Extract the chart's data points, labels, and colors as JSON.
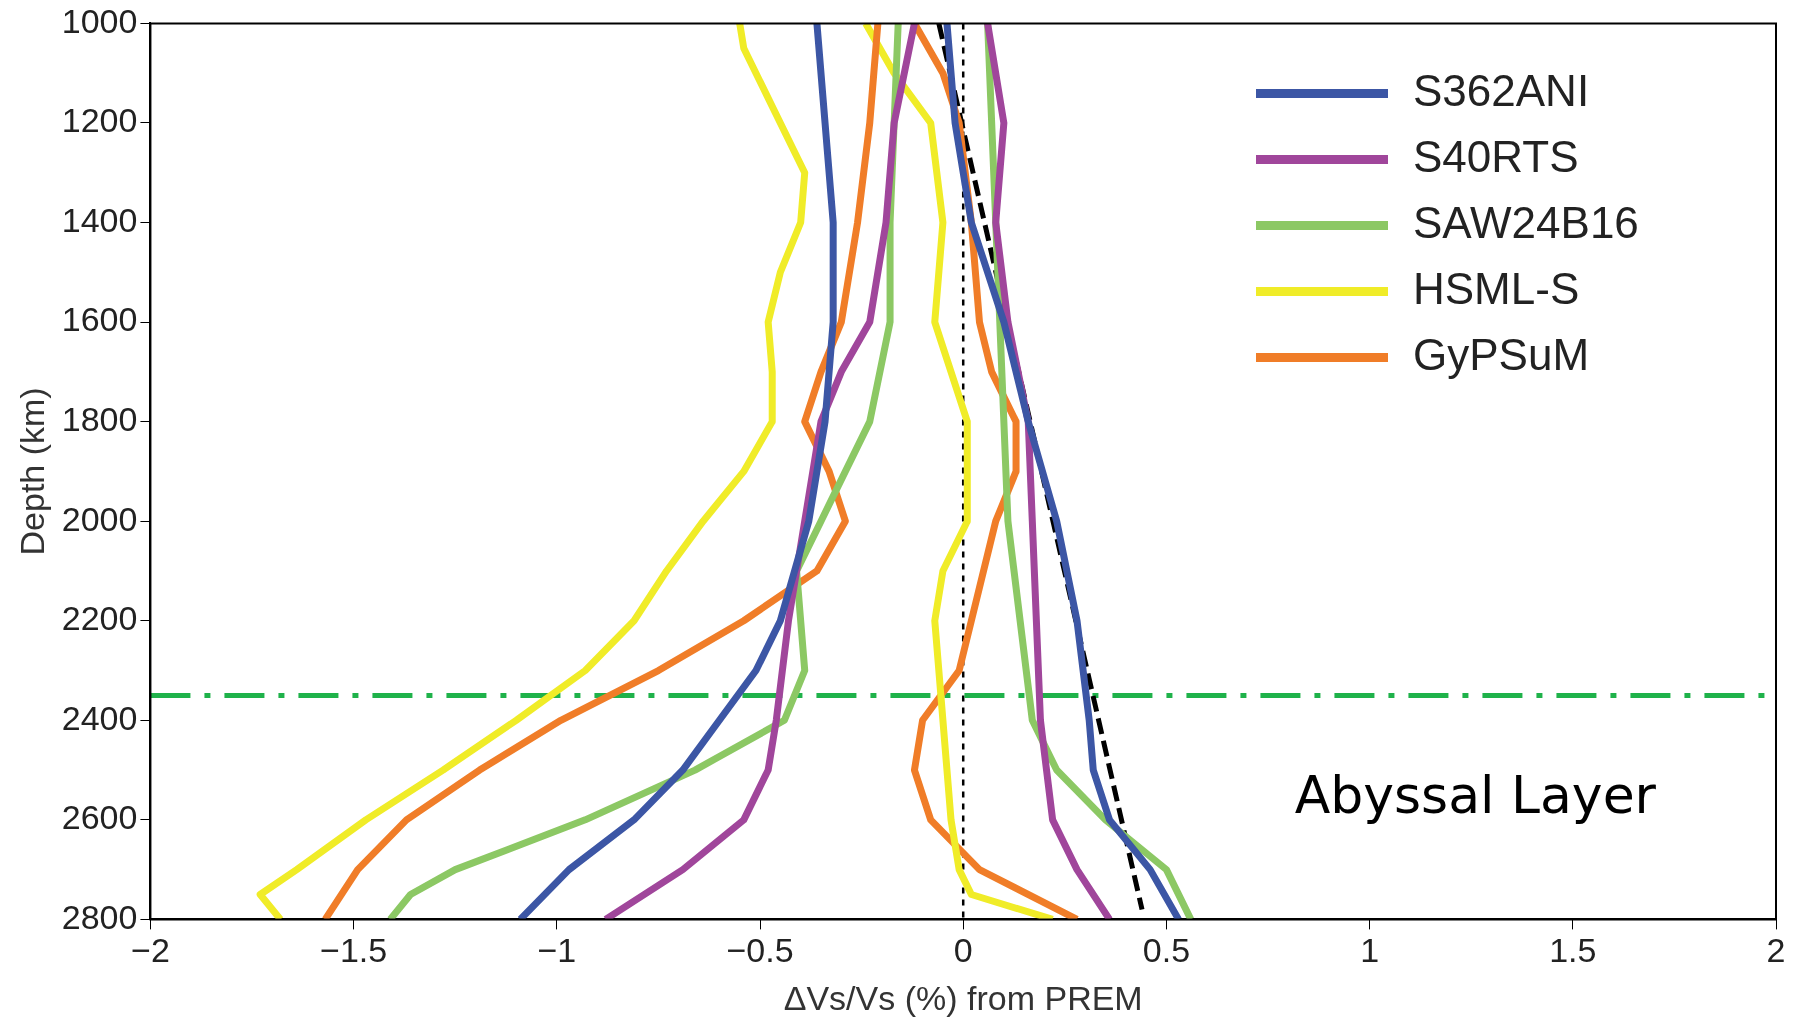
{
  "chart_data": {
    "type": "line",
    "xlabel": "ΔVs/Vs (%) from PREM",
    "ylabel": "Depth (km)",
    "xlim": [
      -2,
      2
    ],
    "xticks": [
      {
        "value": -2,
        "label": "−2"
      },
      {
        "value": -1.5,
        "label": "−1.5"
      },
      {
        "value": -1,
        "label": "−1"
      },
      {
        "value": -0.5,
        "label": "−0.5"
      },
      0,
      0.5,
      1,
      1.5,
      2
    ],
    "ylim": [
      2800,
      1000
    ],
    "yticks": [
      1000,
      1200,
      1400,
      1600,
      1800,
      2000,
      2200,
      2400,
      2600,
      2800
    ],
    "grid": false,
    "legend": "top right",
    "marker": "none",
    "line_style": "solid",
    "series": [
      {
        "name": "S362ANI",
        "color": "#3c56a5",
        "x": [
          -0.36,
          -0.34,
          -0.32,
          -0.32,
          -0.34,
          -0.38,
          -0.45,
          -0.51,
          -0.6,
          -0.69,
          -0.81,
          -0.97,
          -1.09
        ],
        "values": [
          1000,
          1200,
          1400,
          1600,
          1800,
          2000,
          2200,
          2300,
          2400,
          2500,
          2600,
          2700,
          2800
        ]
      },
      {
        "name": "S40RTS",
        "color": "#a0469b",
        "x": [
          -0.12,
          -0.17,
          -0.19,
          -0.23,
          -0.3,
          -0.35,
          -0.39,
          -0.43,
          -0.46,
          -0.48,
          -0.54,
          -0.69,
          -0.88
        ],
        "values": [
          1000,
          1200,
          1400,
          1600,
          1700,
          1800,
          2000,
          2200,
          2400,
          2500,
          2600,
          2700,
          2800
        ]
      },
      {
        "name": "SAW24B16",
        "color": "#8cc864",
        "x": [
          -0.16,
          -0.17,
          -0.18,
          -0.18,
          -0.23,
          -0.35,
          -0.41,
          -0.4,
          -0.39,
          -0.44,
          -0.66,
          -0.93,
          -1.25,
          -1.36,
          -1.41
        ],
        "values": [
          1000,
          1200,
          1400,
          1600,
          1800,
          2000,
          2100,
          2200,
          2300,
          2400,
          2500,
          2600,
          2700,
          2750,
          2800
        ]
      },
      {
        "name": "HSML-S",
        "color": "#f0ec28",
        "x": [
          -0.55,
          -0.54,
          -0.45,
          -0.39,
          -0.4,
          -0.45,
          -0.48,
          -0.47,
          -0.47,
          -0.54,
          -0.64,
          -0.73,
          -0.81,
          -0.93,
          -1.1,
          -1.28,
          -1.47,
          -1.64,
          -1.73,
          -1.68
        ],
        "values": [
          1000,
          1050,
          1200,
          1300,
          1400,
          1500,
          1600,
          1700,
          1800,
          1900,
          2000,
          2100,
          2200,
          2300,
          2400,
          2500,
          2600,
          2700,
          2750,
          2800
        ]
      },
      {
        "name": "GyPSuM",
        "color": "#f07d28",
        "x": [
          -0.21,
          -0.23,
          -0.26,
          -0.3,
          -0.35,
          -0.39,
          -0.33,
          -0.29,
          -0.36,
          -0.54,
          -0.75,
          -0.99,
          -1.19,
          -1.37,
          -1.49,
          -1.57
        ],
        "values": [
          1000,
          1200,
          1400,
          1600,
          1700,
          1800,
          1900,
          2000,
          2100,
          2200,
          2300,
          2400,
          2500,
          2600,
          2700,
          2800
        ]
      },
      {
        "color": "#3c56a5",
        "x": [
          -0.04,
          -0.02,
          0.02,
          0.1,
          0.16,
          0.23,
          0.28,
          0.31,
          0.32,
          0.36,
          0.46,
          0.53
        ],
        "values": [
          1000,
          1200,
          1400,
          1600,
          1800,
          2000,
          2200,
          2400,
          2500,
          2600,
          2700,
          2800
        ]
      },
      {
        "color": "#a0469b",
        "x": [
          0.06,
          0.1,
          0.08,
          0.11,
          0.16,
          0.17,
          0.18,
          0.19,
          0.22,
          0.28,
          0.36
        ],
        "values": [
          1000,
          1200,
          1400,
          1600,
          1800,
          2000,
          2200,
          2400,
          2600,
          2700,
          2800
        ]
      },
      {
        "color": "#8cc864",
        "x": [
          0.06,
          0.07,
          0.08,
          0.09,
          0.1,
          0.11,
          0.14,
          0.17,
          0.23,
          0.35,
          0.5,
          0.56
        ],
        "values": [
          1000,
          1200,
          1400,
          1600,
          1800,
          2000,
          2200,
          2400,
          2500,
          2600,
          2700,
          2800
        ]
      },
      {
        "color": "#f0ec28",
        "x": [
          -0.24,
          -0.17,
          -0.08,
          -0.05,
          -0.07,
          -0.03,
          0.01,
          0.01,
          -0.05,
          -0.07,
          -0.05,
          -0.03,
          -0.01,
          0.02,
          0.22
        ],
        "values": [
          1000,
          1100,
          1200,
          1400,
          1600,
          1700,
          1800,
          2000,
          2100,
          2200,
          2400,
          2600,
          2700,
          2750,
          2800
        ]
      },
      {
        "color": "#f07d28",
        "x": [
          -0.12,
          -0.05,
          -0.01,
          0.02,
          0.04,
          0.07,
          0.13,
          0.13,
          0.08,
          0.02,
          -0.01,
          -0.1,
          -0.12,
          -0.08,
          0.04,
          0.28
        ],
        "values": [
          1000,
          1100,
          1200,
          1400,
          1600,
          1700,
          1800,
          1900,
          2000,
          2200,
          2300,
          2400,
          2500,
          2600,
          2700,
          2800
        ]
      },
      {
        "color": "#000000",
        "line_style": "dashed",
        "x": [
          -0.06,
          0.44
        ],
        "values": [
          1000,
          2780
        ]
      }
    ],
    "ref_lines": [
      {
        "axis": "x",
        "value": 0,
        "color": "#000000",
        "line_style": "dotted"
      },
      {
        "axis": "y",
        "value": 2350,
        "color": "#1fb24a",
        "line_style": "dashed"
      }
    ],
    "annotations": [
      "Abyssal Layer"
    ]
  }
}
